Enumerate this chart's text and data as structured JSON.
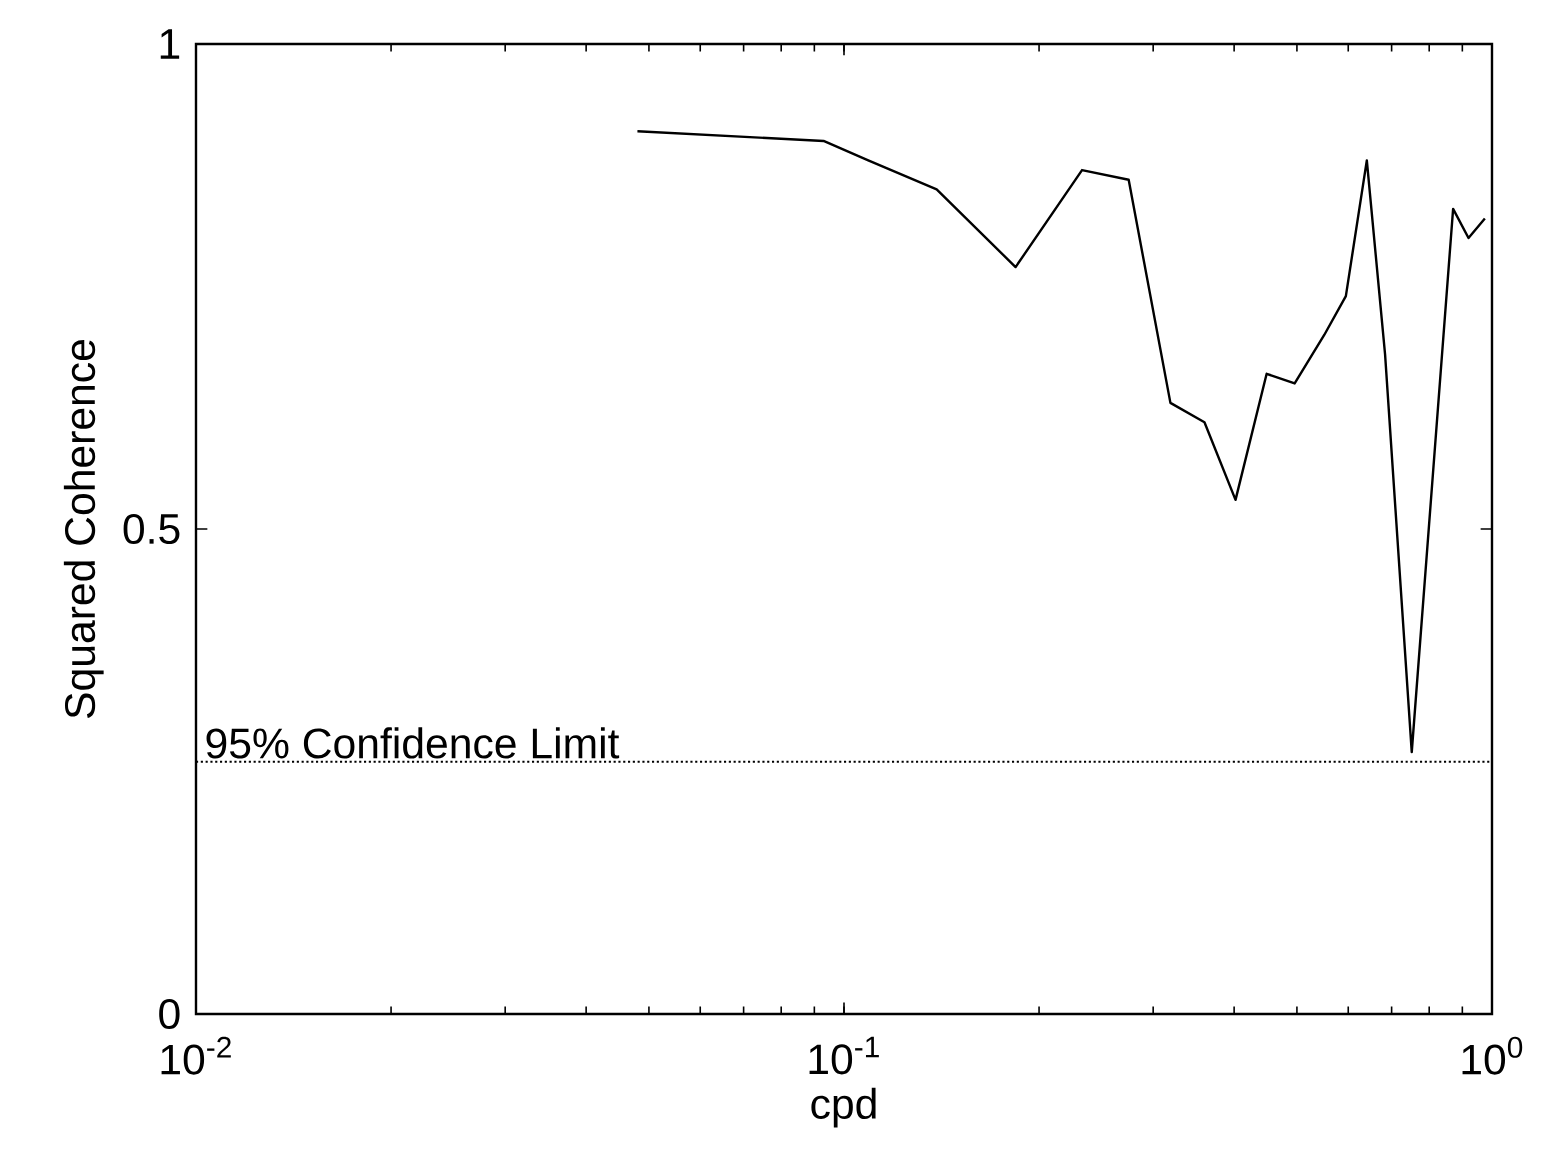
{
  "chart_data": {
    "type": "line",
    "xlabel": "cpd",
    "ylabel": "Squared Coherence",
    "log": "x",
    "grid": false,
    "x": [
      0.048,
      0.093,
      0.109,
      0.139,
      0.184,
      0.233,
      0.275,
      0.319,
      0.36,
      0.402,
      0.449,
      0.496,
      0.551,
      0.595,
      0.641,
      0.684,
      0.752,
      0.871,
      0.92,
      0.975
    ],
    "series": [
      {
        "color": "#000000",
        "line_style": "solid",
        "values": [
          0.91,
          0.9,
          0.88,
          0.85,
          0.77,
          0.87,
          0.86,
          0.63,
          0.61,
          0.53,
          0.66,
          0.65,
          0.7,
          0.74,
          0.88,
          0.68,
          0.27,
          0.83,
          0.8,
          0.82
        ]
      }
    ],
    "xlim": [
      0.01,
      1
    ],
    "ylim": [
      0,
      1
    ],
    "xticks": [
      {
        "value": 0.01,
        "label": "10$^{-2}$"
      },
      {
        "value": 0.1,
        "label": "10$^{-1}$"
      },
      {
        "value": 1,
        "label": "10$^{0}$"
      }
    ],
    "yticks": [
      0,
      0.5,
      1
    ],
    "ref_lines": [
      {
        "axis": "y",
        "value": 0.26,
        "label": "95% Confidence Limit",
        "color": "#000000",
        "line_style": "dotted"
      }
    ]
  }
}
